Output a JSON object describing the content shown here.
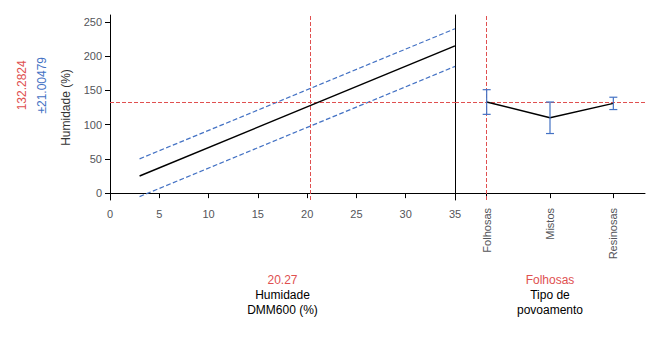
{
  "chart_data": [
    {
      "type": "line",
      "ylabel": "Humidade (%)",
      "xlabel": "Humidade\nDMM600 (%)",
      "xlabel_highlight": {
        "text": "20.27",
        "color": "#E05050"
      },
      "annotations": [
        {
          "text": "132.2824",
          "color": "#E05050"
        },
        {
          "text": "±21.00479",
          "color": "#4472C4"
        }
      ],
      "xlim": [
        0,
        35
      ],
      "xticks": [
        0,
        5,
        10,
        15,
        20,
        25,
        30,
        35
      ],
      "ylim": [
        -10,
        260
      ],
      "yticks": [
        0,
        50,
        100,
        150,
        200,
        250
      ],
      "grid": false,
      "series": [
        {
          "x": [
            3,
            35
          ],
          "values": [
            25,
            215
          ],
          "color": "#000000",
          "line_style": "solid"
        },
        {
          "x": [
            3,
            35
          ],
          "values": [
            50,
            240
          ],
          "color": "#4472C4",
          "line_style": "dashed"
        },
        {
          "x": [
            3,
            35
          ],
          "values": [
            -5,
            185
          ],
          "color": "#4472C4",
          "line_style": "dashed"
        }
      ],
      "hline": {
        "y": 132.2824,
        "color": "#E05050",
        "line_style": "dashed"
      },
      "vline": {
        "x": 20.27,
        "color": "#E05050",
        "line_style": "dashed"
      }
    },
    {
      "type": "line",
      "xlabel": "Tipo de\npovoamento",
      "xlabel_highlight": {
        "text": "Folhosas",
        "color": "#E05050"
      },
      "categories": [
        "Folhosas",
        "Mistos",
        "Resinosas"
      ],
      "values": [
        133.0,
        110.0,
        131.0
      ],
      "errors_upper": [
        18,
        23,
        9
      ],
      "errors_lower": [
        18,
        23,
        9
      ],
      "color": "#000000",
      "error_color": "#4472C4",
      "ylim": [
        -10,
        260
      ],
      "yticks": [
        0,
        50,
        100,
        150,
        200,
        250
      ],
      "grid": false,
      "tick_labels": "x",
      "hline": {
        "y": 132.2824,
        "color": "#E05050",
        "line_style": "dashed"
      },
      "vline": {
        "category": "Folhosas",
        "color": "#E05050",
        "line_style": "dashed"
      }
    }
  ]
}
